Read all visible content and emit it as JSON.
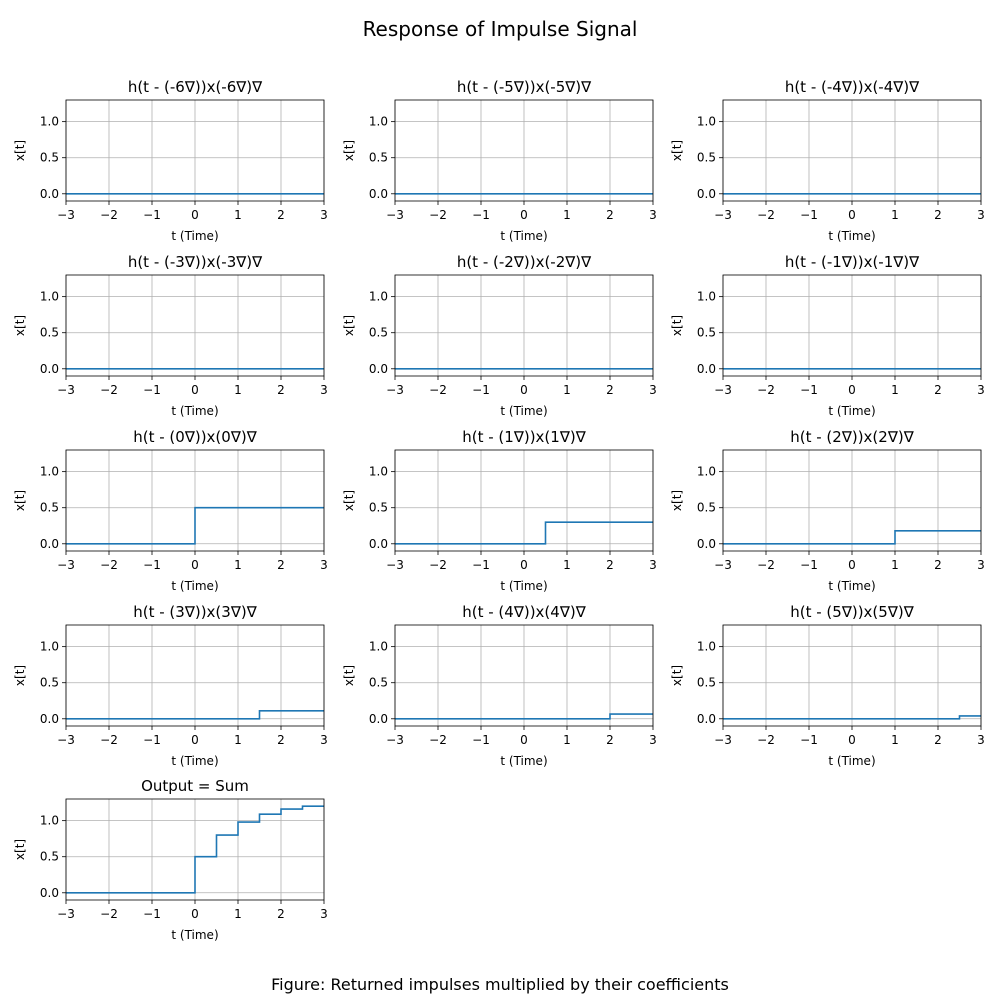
{
  "figure": {
    "suptitle": "Response of Impulse Signal",
    "caption": "Figure: Returned impulses multiplied by their coefficients"
  },
  "style": {
    "line_color": "#1f77b4",
    "grid_color": "#b0b0b0"
  },
  "axes_common": {
    "xlabel": "t (Time)",
    "ylabel": "x[t]",
    "xlim": [
      -3,
      3
    ],
    "ylim": [
      -0.1,
      1.3
    ],
    "xticks": [
      -3,
      -2,
      -1,
      0,
      1,
      2,
      3
    ],
    "xtick_labels": [
      "−3",
      "−2",
      "−1",
      "0",
      "1",
      "2",
      "3"
    ],
    "yticks": [
      0.0,
      0.5,
      1.0
    ],
    "ytick_labels": [
      "0.0",
      "0.5",
      "1.0"
    ],
    "grid": true
  },
  "chart_data": [
    {
      "type": "line",
      "title": "h(t - (-6∇))x(-6∇)∇",
      "x": [
        -3,
        3
      ],
      "y": [
        0,
        0
      ]
    },
    {
      "type": "line",
      "title": "h(t - (-5∇))x(-5∇)∇",
      "x": [
        -3,
        3
      ],
      "y": [
        0,
        0
      ]
    },
    {
      "type": "line",
      "title": "h(t - (-4∇))x(-4∇)∇",
      "x": [
        -3,
        3
      ],
      "y": [
        0,
        0
      ]
    },
    {
      "type": "line",
      "title": "h(t - (-3∇))x(-3∇)∇",
      "x": [
        -3,
        3
      ],
      "y": [
        0,
        0
      ]
    },
    {
      "type": "line",
      "title": "h(t - (-2∇))x(-2∇)∇",
      "x": [
        -3,
        3
      ],
      "y": [
        0,
        0
      ]
    },
    {
      "type": "line",
      "title": "h(t - (-1∇))x(-1∇)∇",
      "x": [
        -3,
        3
      ],
      "y": [
        0,
        0
      ]
    },
    {
      "type": "line",
      "title": "h(t - (0∇))x(0∇)∇",
      "x": [
        -3,
        0,
        0,
        3
      ],
      "y": [
        0,
        0,
        0.5,
        0.5
      ]
    },
    {
      "type": "line",
      "title": "h(t - (1∇))x(1∇)∇",
      "x": [
        -3,
        0.5,
        0.5,
        3
      ],
      "y": [
        0,
        0,
        0.3,
        0.3
      ]
    },
    {
      "type": "line",
      "title": "h(t - (2∇))x(2∇)∇",
      "x": [
        -3,
        1,
        1,
        3
      ],
      "y": [
        0,
        0,
        0.18,
        0.18
      ]
    },
    {
      "type": "line",
      "title": "h(t - (3∇))x(3∇)∇",
      "x": [
        -3,
        1.5,
        1.5,
        3
      ],
      "y": [
        0,
        0,
        0.11,
        0.11
      ]
    },
    {
      "type": "line",
      "title": "h(t - (4∇))x(4∇)∇",
      "x": [
        -3,
        2,
        2,
        3
      ],
      "y": [
        0,
        0,
        0.065,
        0.065
      ]
    },
    {
      "type": "line",
      "title": "h(t - (5∇))x(5∇)∇",
      "x": [
        -3,
        2.5,
        2.5,
        3
      ],
      "y": [
        0,
        0,
        0.04,
        0.04
      ]
    },
    {
      "type": "line",
      "title": "Output = Sum",
      "x": [
        -3,
        0,
        0,
        0.5,
        0.5,
        1,
        1,
        1.5,
        1.5,
        2,
        2,
        2.5,
        2.5,
        3
      ],
      "y": [
        0,
        0,
        0.5,
        0.5,
        0.8,
        0.8,
        0.98,
        0.98,
        1.09,
        1.09,
        1.16,
        1.16,
        1.2,
        1.2
      ]
    }
  ]
}
